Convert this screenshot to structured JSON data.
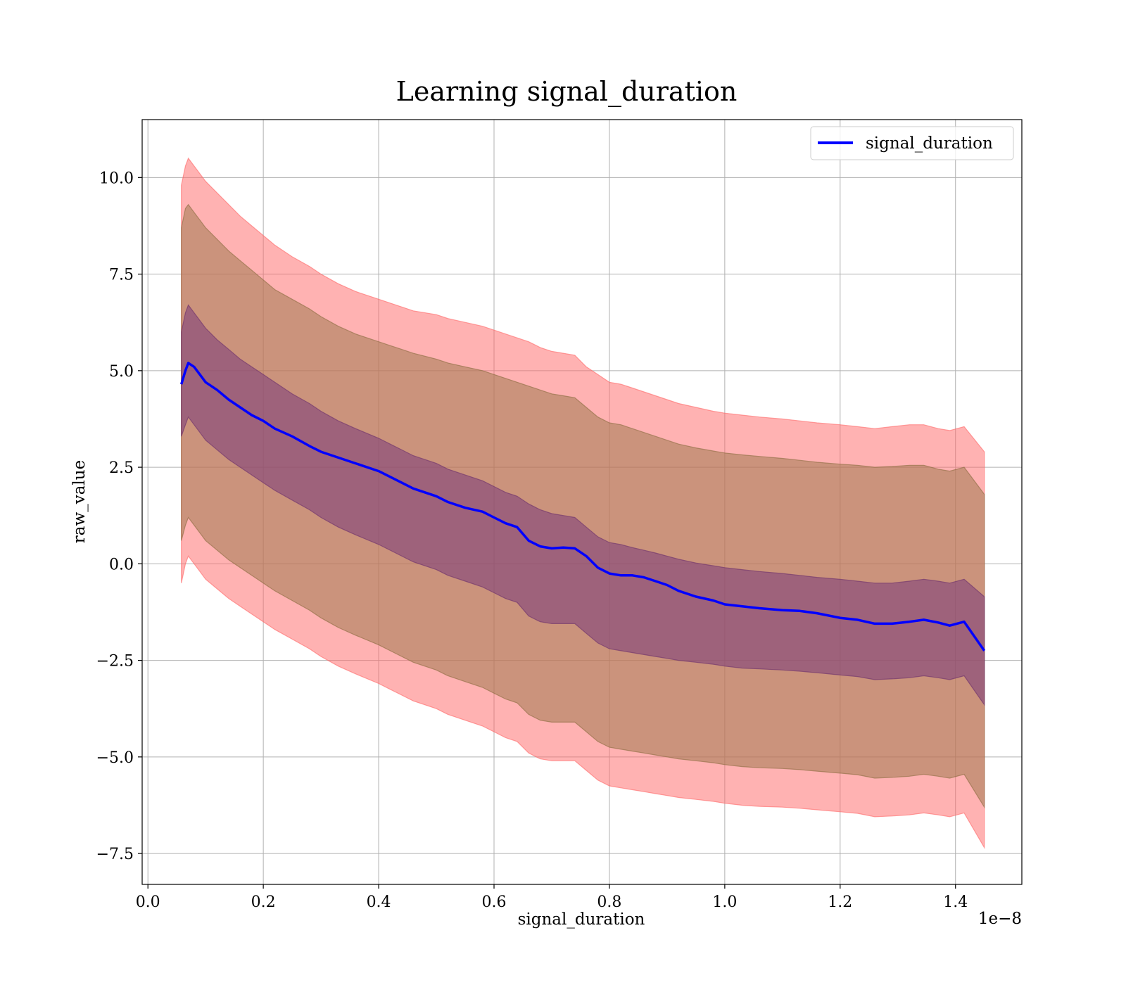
{
  "chart_data": {
    "type": "line",
    "title": "Learning signal_duration",
    "xlabel": "signal_duration",
    "ylabel": "raw_value",
    "x_offset_text": "1e−8",
    "xlim": [
      -0.01,
      1.515
    ],
    "ylim": [
      -8.3,
      11.5
    ],
    "x_ticks": [
      0.0,
      0.2,
      0.4,
      0.6,
      0.8,
      1.0,
      1.2,
      1.4
    ],
    "x_tick_labels": [
      "0.0",
      "0.2",
      "0.4",
      "0.6",
      "0.8",
      "1.0",
      "1.2",
      "1.4"
    ],
    "y_ticks": [
      -7.5,
      -5.0,
      -2.5,
      0.0,
      2.5,
      5.0,
      7.5,
      10.0
    ],
    "y_tick_labels": [
      "−7.5",
      "−5.0",
      "−2.5",
      "0.0",
      "2.5",
      "5.0",
      "7.5",
      "10.0"
    ],
    "grid": true,
    "legend_position": "top-right",
    "colors": {
      "mean_line": "#0000ff",
      "band_outer": "#ff6666",
      "band_mid": "#a07a50",
      "band_inner": "#7a3a7a"
    },
    "series": [
      {
        "name": "signal_duration",
        "x": [
          0.058,
          0.065,
          0.07,
          0.08,
          0.09,
          0.1,
          0.12,
          0.14,
          0.16,
          0.18,
          0.2,
          0.22,
          0.25,
          0.28,
          0.3,
          0.33,
          0.36,
          0.4,
          0.42,
          0.44,
          0.46,
          0.5,
          0.52,
          0.55,
          0.58,
          0.6,
          0.62,
          0.64,
          0.66,
          0.68,
          0.7,
          0.72,
          0.74,
          0.76,
          0.78,
          0.8,
          0.82,
          0.84,
          0.86,
          0.88,
          0.9,
          0.92,
          0.95,
          0.98,
          1.0,
          1.03,
          1.06,
          1.1,
          1.13,
          1.16,
          1.2,
          1.23,
          1.26,
          1.29,
          1.32,
          1.345,
          1.37,
          1.39,
          1.415,
          1.45
        ],
        "values": [
          4.65,
          5.0,
          5.2,
          5.1,
          4.9,
          4.7,
          4.5,
          4.25,
          4.05,
          3.85,
          3.7,
          3.5,
          3.3,
          3.05,
          2.9,
          2.75,
          2.6,
          2.4,
          2.25,
          2.1,
          1.95,
          1.75,
          1.6,
          1.45,
          1.35,
          1.2,
          1.05,
          0.95,
          0.6,
          0.45,
          0.4,
          0.42,
          0.4,
          0.2,
          -0.1,
          -0.25,
          -0.3,
          -0.3,
          -0.35,
          -0.45,
          -0.55,
          -0.7,
          -0.85,
          -0.95,
          -1.05,
          -1.1,
          -1.15,
          -1.2,
          -1.22,
          -1.28,
          -1.4,
          -1.45,
          -1.55,
          -1.55,
          -1.5,
          -1.45,
          -1.52,
          -1.6,
          -1.5,
          -2.25
        ]
      }
    ],
    "bands": {
      "x": [
        0.058,
        0.065,
        0.07,
        0.08,
        0.09,
        0.1,
        0.12,
        0.14,
        0.16,
        0.18,
        0.2,
        0.22,
        0.25,
        0.28,
        0.3,
        0.33,
        0.36,
        0.4,
        0.42,
        0.44,
        0.46,
        0.5,
        0.52,
        0.55,
        0.58,
        0.6,
        0.62,
        0.64,
        0.66,
        0.68,
        0.7,
        0.72,
        0.74,
        0.76,
        0.78,
        0.8,
        0.82,
        0.84,
        0.86,
        0.88,
        0.9,
        0.92,
        0.95,
        0.98,
        1.0,
        1.03,
        1.06,
        1.1,
        1.13,
        1.16,
        1.2,
        1.23,
        1.26,
        1.29,
        1.32,
        1.345,
        1.37,
        1.39,
        1.415,
        1.45
      ],
      "outer_upper": [
        9.8,
        10.3,
        10.5,
        10.3,
        10.1,
        9.9,
        9.6,
        9.3,
        9.0,
        8.75,
        8.5,
        8.25,
        7.95,
        7.7,
        7.5,
        7.25,
        7.05,
        6.85,
        6.75,
        6.65,
        6.55,
        6.45,
        6.35,
        6.25,
        6.15,
        6.05,
        5.95,
        5.85,
        5.75,
        5.6,
        5.5,
        5.45,
        5.4,
        5.1,
        4.9,
        4.7,
        4.65,
        4.55,
        4.45,
        4.35,
        4.25,
        4.15,
        4.05,
        3.95,
        3.9,
        3.85,
        3.8,
        3.75,
        3.7,
        3.65,
        3.6,
        3.55,
        3.5,
        3.55,
        3.6,
        3.6,
        3.5,
        3.45,
        3.55,
        2.9
      ],
      "mid_upper": [
        8.7,
        9.2,
        9.3,
        9.1,
        8.9,
        8.7,
        8.4,
        8.1,
        7.85,
        7.6,
        7.35,
        7.1,
        6.85,
        6.6,
        6.4,
        6.15,
        5.95,
        5.75,
        5.65,
        5.55,
        5.45,
        5.3,
        5.2,
        5.1,
        5.0,
        4.9,
        4.8,
        4.7,
        4.6,
        4.5,
        4.4,
        4.35,
        4.3,
        4.05,
        3.8,
        3.65,
        3.6,
        3.5,
        3.4,
        3.3,
        3.2,
        3.1,
        3.0,
        2.92,
        2.87,
        2.82,
        2.78,
        2.73,
        2.68,
        2.63,
        2.58,
        2.55,
        2.5,
        2.52,
        2.55,
        2.55,
        2.45,
        2.4,
        2.5,
        1.8
      ],
      "inner_upper": [
        6.0,
        6.5,
        6.7,
        6.5,
        6.3,
        6.1,
        5.8,
        5.55,
        5.3,
        5.1,
        4.9,
        4.7,
        4.4,
        4.15,
        3.95,
        3.7,
        3.5,
        3.25,
        3.1,
        2.95,
        2.8,
        2.6,
        2.45,
        2.3,
        2.15,
        2.0,
        1.85,
        1.75,
        1.55,
        1.4,
        1.3,
        1.25,
        1.2,
        0.95,
        0.7,
        0.55,
        0.5,
        0.42,
        0.35,
        0.28,
        0.2,
        0.12,
        0.02,
        -0.05,
        -0.1,
        -0.15,
        -0.2,
        -0.25,
        -0.3,
        -0.35,
        -0.4,
        -0.45,
        -0.5,
        -0.5,
        -0.45,
        -0.4,
        -0.45,
        -0.5,
        -0.4,
        -0.85
      ],
      "inner_lower": [
        3.3,
        3.6,
        3.8,
        3.6,
        3.4,
        3.2,
        2.95,
        2.7,
        2.5,
        2.3,
        2.1,
        1.9,
        1.65,
        1.4,
        1.2,
        0.95,
        0.75,
        0.5,
        0.35,
        0.2,
        0.05,
        -0.15,
        -0.3,
        -0.45,
        -0.6,
        -0.75,
        -0.9,
        -1.0,
        -1.35,
        -1.5,
        -1.55,
        -1.55,
        -1.55,
        -1.8,
        -2.05,
        -2.2,
        -2.25,
        -2.3,
        -2.35,
        -2.4,
        -2.45,
        -2.5,
        -2.55,
        -2.6,
        -2.65,
        -2.7,
        -2.72,
        -2.75,
        -2.78,
        -2.82,
        -2.88,
        -2.92,
        -3.0,
        -2.98,
        -2.95,
        -2.9,
        -2.95,
        -3.0,
        -2.9,
        -3.65
      ],
      "mid_lower": [
        0.6,
        1.0,
        1.2,
        1.0,
        0.8,
        0.6,
        0.35,
        0.1,
        -0.1,
        -0.3,
        -0.5,
        -0.7,
        -0.95,
        -1.2,
        -1.4,
        -1.65,
        -1.85,
        -2.1,
        -2.25,
        -2.4,
        -2.55,
        -2.75,
        -2.9,
        -3.05,
        -3.2,
        -3.35,
        -3.5,
        -3.6,
        -3.9,
        -4.05,
        -4.1,
        -4.1,
        -4.1,
        -4.35,
        -4.6,
        -4.75,
        -4.8,
        -4.85,
        -4.9,
        -4.95,
        -5.0,
        -5.05,
        -5.1,
        -5.15,
        -5.2,
        -5.25,
        -5.28,
        -5.3,
        -5.33,
        -5.37,
        -5.42,
        -5.46,
        -5.55,
        -5.53,
        -5.5,
        -5.45,
        -5.5,
        -5.55,
        -5.45,
        -6.3
      ],
      "outer_lower": [
        -0.5,
        0.0,
        0.2,
        0.0,
        -0.2,
        -0.4,
        -0.65,
        -0.9,
        -1.1,
        -1.3,
        -1.5,
        -1.7,
        -1.95,
        -2.2,
        -2.4,
        -2.65,
        -2.85,
        -3.1,
        -3.25,
        -3.4,
        -3.55,
        -3.75,
        -3.9,
        -4.05,
        -4.2,
        -4.35,
        -4.5,
        -4.6,
        -4.9,
        -5.05,
        -5.1,
        -5.1,
        -5.1,
        -5.35,
        -5.6,
        -5.75,
        -5.8,
        -5.85,
        -5.9,
        -5.95,
        -6.0,
        -6.05,
        -6.1,
        -6.15,
        -6.2,
        -6.25,
        -6.28,
        -6.3,
        -6.33,
        -6.37,
        -6.42,
        -6.46,
        -6.55,
        -6.53,
        -6.5,
        -6.45,
        -6.5,
        -6.55,
        -6.45,
        -7.35
      ]
    }
  }
}
